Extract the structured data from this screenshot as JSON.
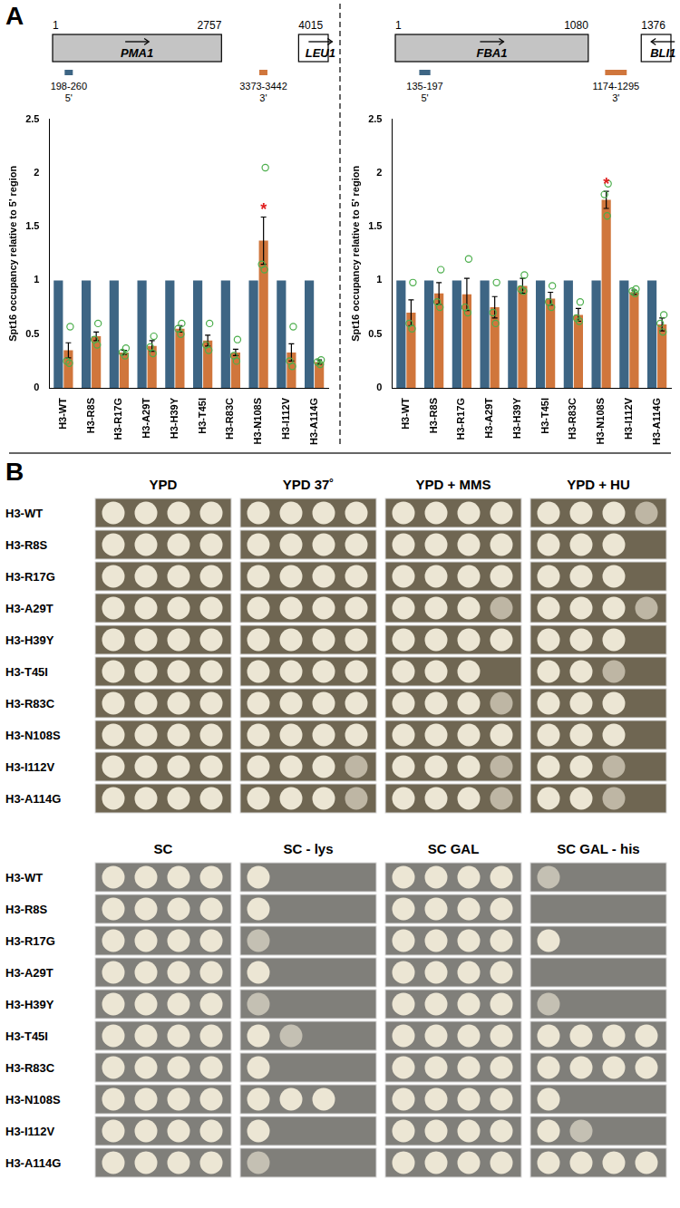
{
  "panel_labels": [
    "A",
    "B"
  ],
  "chart_data": [
    {
      "type": "bar",
      "gene_map": {
        "genes": [
          {
            "name": "PMA1",
            "start": 1,
            "end": 2757,
            "strand": "+"
          },
          {
            "name": "LEU1",
            "start": 4015,
            "strand": "+"
          }
        ],
        "amplicons": [
          {
            "label": "198-260",
            "region": "5'",
            "start": 198,
            "end": 260,
            "color": "#3d6584"
          },
          {
            "label": "3373-3442",
            "region": "3'",
            "start": 3373,
            "end": 3442,
            "color": "#d0763c"
          }
        ]
      },
      "categories": [
        "H3-WT",
        "H3-R8S",
        "H3-R17G",
        "H3-A29T",
        "H3-H39Y",
        "H3-T45I",
        "H3-R83C",
        "H3-N108S",
        "H3-I112V",
        "H3-A114G"
      ],
      "series": [
        {
          "name": "5'",
          "color": "#3d6584",
          "values": [
            1,
            1,
            1,
            1,
            1,
            1,
            1,
            1,
            1,
            1
          ]
        },
        {
          "name": "3'",
          "color": "#d0763c",
          "values": [
            0.35,
            0.48,
            0.33,
            0.39,
            0.55,
            0.44,
            0.33,
            1.37,
            0.33,
            0.24
          ],
          "errors": [
            0.07,
            0.04,
            0.02,
            0.05,
            0.03,
            0.05,
            0.03,
            0.22,
            0.08,
            0.02
          ],
          "points": [
            [
              0.57,
              0.25,
              0.23
            ],
            [
              0.6,
              0.45,
              0.4
            ],
            [
              0.37,
              0.33,
              0.3
            ],
            [
              0.48,
              0.38,
              0.32
            ],
            [
              0.6,
              0.55,
              0.5
            ],
            [
              0.6,
              0.4,
              0.35
            ],
            [
              0.45,
              0.3,
              0.25
            ],
            [
              2.05,
              1.15,
              1.1
            ],
            [
              0.57,
              0.25,
              0.2
            ],
            [
              0.26,
              0.24,
              0.22
            ]
          ]
        }
      ],
      "annotations": [
        {
          "category": "H3-N108S",
          "series": "3'",
          "text": "*",
          "color": "#e02020"
        }
      ],
      "y_label": "Spt16 occupancy relative to 5' region",
      "ylim": [
        0,
        2.5
      ],
      "yticks": [
        0,
        0.5,
        1,
        1.5,
        2,
        2.5
      ],
      "grid": false
    },
    {
      "type": "bar",
      "gene_map": {
        "genes": [
          {
            "name": "FBA1",
            "start": 1,
            "end": 1080,
            "strand": "+"
          },
          {
            "name": "BLI1",
            "start": 1376,
            "strand": "-"
          }
        ],
        "amplicons": [
          {
            "label": "135-197",
            "region": "5'",
            "start": 135,
            "end": 197,
            "color": "#3d6584"
          },
          {
            "label": "1174-1295",
            "region": "3'",
            "start": 1174,
            "end": 1295,
            "color": "#d0763c"
          }
        ]
      },
      "categories": [
        "H3-WT",
        "H3-R8S",
        "H3-R17G",
        "H3-A29T",
        "H3-H39Y",
        "H3-T45I",
        "H3-R83C",
        "H3-N108S",
        "H3-I112V",
        "H3-A114G"
      ],
      "series": [
        {
          "name": "5'",
          "color": "#3d6584",
          "values": [
            1,
            1,
            1,
            1,
            1,
            1,
            1,
            1,
            1,
            1
          ]
        },
        {
          "name": "3'",
          "color": "#d0763c",
          "values": [
            0.7,
            0.88,
            0.87,
            0.75,
            0.95,
            0.83,
            0.68,
            1.75,
            0.89,
            0.59
          ],
          "errors": [
            0.12,
            0.1,
            0.15,
            0.1,
            0.07,
            0.06,
            0.06,
            0.08,
            0.02,
            0.06
          ],
          "points": [
            [
              0.98,
              0.6,
              0.55
            ],
            [
              1.1,
              0.8,
              0.75
            ],
            [
              1.2,
              0.75,
              0.7
            ],
            [
              0.98,
              0.7,
              0.6
            ],
            [
              1.05,
              0.92,
              0.9
            ],
            [
              0.95,
              0.8,
              0.75
            ],
            [
              0.8,
              0.65,
              0.62
            ],
            [
              1.9,
              1.8,
              1.6
            ],
            [
              0.92,
              0.9,
              0.88
            ],
            [
              0.68,
              0.6,
              0.52
            ]
          ]
        }
      ],
      "annotations": [
        {
          "category": "H3-N108S",
          "series": "3'",
          "text": "*",
          "color": "#e02020"
        }
      ],
      "y_label": "Spt16 occupancy relative to 5' region",
      "ylim": [
        0,
        2.5
      ],
      "yticks": [
        0,
        0.5,
        1,
        1.5,
        2,
        2.5
      ],
      "grid": false
    }
  ],
  "spot_assay": {
    "strains": [
      "H3-WT",
      "H3-R8S",
      "H3-R17G",
      "H3-A29T",
      "H3-H39Y",
      "H3-T45I",
      "H3-R83C",
      "H3-N108S",
      "H3-I112V",
      "H3-A114G"
    ],
    "groups": [
      {
        "conditions": [
          {
            "name": "YPD",
            "growth": [
              4,
              4,
              4,
              4,
              4,
              4,
              4,
              4,
              4,
              4
            ]
          },
          {
            "name": "YPD 37˚",
            "growth": [
              4,
              4,
              4,
              4,
              4,
              4,
              4,
              4,
              3.5,
              3.5
            ]
          },
          {
            "name": "YPD + MMS",
            "growth": [
              4,
              4,
              4,
              3.5,
              4,
              3,
              3.5,
              4,
              3.5,
              3.5
            ]
          },
          {
            "name": "YPD + HU",
            "growth": [
              3.5,
              3,
              3,
              3.5,
              3,
              2.5,
              3,
              3,
              2.5,
              2.5
            ]
          }
        ]
      },
      {
        "conditions": [
          {
            "name": "SC",
            "growth": [
              4,
              4,
              4,
              4,
              4,
              4,
              4,
              4,
              4,
              4
            ]
          },
          {
            "name": "SC - lys",
            "growth": [
              1,
              1,
              0.5,
              1,
              0.5,
              1.5,
              1,
              3,
              1,
              0.5
            ]
          },
          {
            "name": "SC GAL",
            "growth": [
              4,
              4,
              4,
              4,
              4,
              4,
              4,
              4,
              4,
              4
            ]
          },
          {
            "name": "SC GAL - his",
            "growth": [
              0.5,
              0,
              1,
              0,
              0.5,
              4,
              4,
              1,
              1.5,
              4
            ]
          }
        ]
      }
    ]
  }
}
